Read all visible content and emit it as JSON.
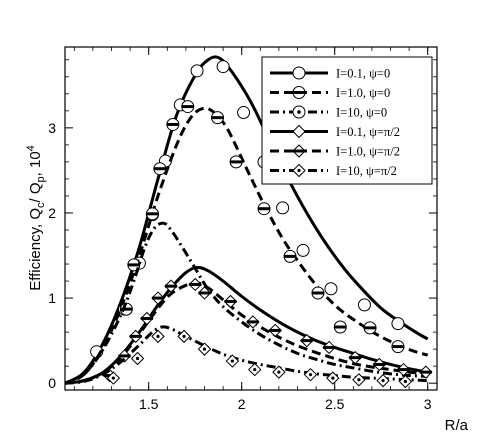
{
  "chart_data": {
    "type": "line",
    "xlabel": "R/a",
    "ylabel_main": "Efficiency,  Q",
    "ylabel_sub1": "c",
    "ylabel_mid": "/ Q",
    "ylabel_sub2": "p",
    "ylabel_tail": ", 10",
    "ylabel_sup": "4",
    "xlim": [
      1.05,
      3.05
    ],
    "ylim": [
      -0.08,
      3.95
    ],
    "xticks": [
      1.5,
      2,
      2.5,
      3
    ],
    "xtick_labels": [
      "1.5",
      "2",
      "2.5",
      "3"
    ],
    "yticks": [
      0,
      1,
      2,
      3
    ],
    "ytick_labels": [
      "0",
      "1",
      "2",
      "3"
    ],
    "legend_position": "top-right",
    "series": [
      {
        "name": "I=0.1,   ψ=0",
        "line": "solid",
        "marker": "circle",
        "curve": [
          [
            1.05,
            0.0
          ],
          [
            1.15,
            0.12
          ],
          [
            1.25,
            0.45
          ],
          [
            1.35,
            0.95
          ],
          [
            1.45,
            1.6
          ],
          [
            1.55,
            2.4
          ],
          [
            1.65,
            3.15
          ],
          [
            1.75,
            3.62
          ],
          [
            1.82,
            3.8
          ],
          [
            1.88,
            3.82
          ],
          [
            1.95,
            3.65
          ],
          [
            2.05,
            3.3
          ],
          [
            2.15,
            2.85
          ],
          [
            2.25,
            2.4
          ],
          [
            2.35,
            2.0
          ],
          [
            2.45,
            1.65
          ],
          [
            2.55,
            1.35
          ],
          [
            2.65,
            1.1
          ],
          [
            2.75,
            0.88
          ],
          [
            2.85,
            0.72
          ],
          [
            2.95,
            0.58
          ],
          [
            3.0,
            0.52
          ]
        ],
        "markers": [
          [
            1.22,
            0.37
          ],
          [
            1.37,
            0.87
          ],
          [
            1.45,
            1.41
          ],
          [
            1.52,
            1.98
          ],
          [
            1.59,
            2.61
          ],
          [
            1.67,
            3.27
          ],
          [
            1.76,
            3.67
          ],
          [
            1.9,
            3.72
          ],
          [
            2.01,
            3.18
          ],
          [
            2.12,
            2.6
          ],
          [
            2.22,
            2.06
          ],
          [
            2.33,
            1.56
          ],
          [
            2.48,
            1.11
          ],
          [
            2.66,
            0.92
          ],
          [
            2.84,
            0.7
          ]
        ]
      },
      {
        "name": "I=1.0,   ψ=0",
        "line": "dashed",
        "marker": "circle-half",
        "curve": [
          [
            1.05,
            0.0
          ],
          [
            1.15,
            0.1
          ],
          [
            1.25,
            0.4
          ],
          [
            1.35,
            0.88
          ],
          [
            1.45,
            1.5
          ],
          [
            1.55,
            2.2
          ],
          [
            1.65,
            2.8
          ],
          [
            1.72,
            3.1
          ],
          [
            1.78,
            3.22
          ],
          [
            1.84,
            3.2
          ],
          [
            1.92,
            3.0
          ],
          [
            2.02,
            2.55
          ],
          [
            2.12,
            2.1
          ],
          [
            2.22,
            1.7
          ],
          [
            2.32,
            1.38
          ],
          [
            2.42,
            1.1
          ],
          [
            2.52,
            0.88
          ],
          [
            2.62,
            0.72
          ],
          [
            2.72,
            0.58
          ],
          [
            2.82,
            0.47
          ],
          [
            2.92,
            0.38
          ],
          [
            3.0,
            0.33
          ]
        ],
        "markers": [
          [
            1.38,
            0.87
          ],
          [
            1.42,
            1.39
          ],
          [
            1.52,
            1.99
          ],
          [
            1.56,
            2.52
          ],
          [
            1.63,
            3.04
          ],
          [
            1.71,
            3.25
          ],
          [
            1.87,
            3.12
          ],
          [
            1.97,
            2.6
          ],
          [
            2.12,
            2.05
          ],
          [
            2.26,
            1.49
          ],
          [
            2.41,
            1.06
          ],
          [
            2.53,
            0.66
          ],
          [
            2.69,
            0.65
          ],
          [
            2.84,
            0.43
          ]
        ]
      },
      {
        "name": "I=10,    ψ=0",
        "line": "dashdot",
        "marker": "circle-dot",
        "curve": [
          [
            1.05,
            0.0
          ],
          [
            1.15,
            0.1
          ],
          [
            1.25,
            0.38
          ],
          [
            1.35,
            0.8
          ],
          [
            1.42,
            1.2
          ],
          [
            1.48,
            1.6
          ],
          [
            1.53,
            1.82
          ],
          [
            1.58,
            1.88
          ],
          [
            1.62,
            1.8
          ],
          [
            1.68,
            1.6
          ],
          [
            1.75,
            1.35
          ],
          [
            1.82,
            1.1
          ],
          [
            1.9,
            0.9
          ],
          [
            2.0,
            0.72
          ],
          [
            2.1,
            0.57
          ],
          [
            2.2,
            0.45
          ],
          [
            2.3,
            0.35
          ],
          [
            2.4,
            0.28
          ],
          [
            2.5,
            0.22
          ],
          [
            2.6,
            0.18
          ],
          [
            2.7,
            0.14
          ],
          [
            2.8,
            0.11
          ],
          [
            2.9,
            0.09
          ],
          [
            3.0,
            0.08
          ]
        ],
        "markers": []
      },
      {
        "name": "I=0.1,   ψ=π/2",
        "line": "solid",
        "marker": "diamond",
        "curve": [
          [
            1.05,
            0.0
          ],
          [
            1.15,
            0.03
          ],
          [
            1.25,
            0.12
          ],
          [
            1.35,
            0.32
          ],
          [
            1.45,
            0.6
          ],
          [
            1.55,
            0.92
          ],
          [
            1.62,
            1.12
          ],
          [
            1.7,
            1.3
          ],
          [
            1.76,
            1.36
          ],
          [
            1.82,
            1.32
          ],
          [
            1.9,
            1.2
          ],
          [
            2.0,
            1.02
          ],
          [
            2.1,
            0.86
          ],
          [
            2.2,
            0.72
          ],
          [
            2.3,
            0.6
          ],
          [
            2.4,
            0.5
          ],
          [
            2.5,
            0.42
          ],
          [
            2.6,
            0.35
          ],
          [
            2.7,
            0.28
          ],
          [
            2.8,
            0.22
          ],
          [
            2.9,
            0.17
          ],
          [
            3.0,
            0.13
          ]
        ],
        "markers": []
      },
      {
        "name": "I=1.0,   ψ=π/2",
        "line": "dashed",
        "marker": "diamond-half",
        "curve": [
          [
            1.05,
            0.0
          ],
          [
            1.15,
            0.03
          ],
          [
            1.25,
            0.12
          ],
          [
            1.35,
            0.3
          ],
          [
            1.45,
            0.58
          ],
          [
            1.55,
            0.88
          ],
          [
            1.62,
            1.05
          ],
          [
            1.7,
            1.15
          ],
          [
            1.76,
            1.18
          ],
          [
            1.82,
            1.12
          ],
          [
            1.9,
            0.98
          ],
          [
            2.0,
            0.8
          ],
          [
            2.1,
            0.66
          ],
          [
            2.2,
            0.54
          ],
          [
            2.3,
            0.44
          ],
          [
            2.4,
            0.36
          ],
          [
            2.5,
            0.29
          ],
          [
            2.6,
            0.23
          ],
          [
            2.7,
            0.19
          ],
          [
            2.8,
            0.16
          ],
          [
            2.9,
            0.13
          ],
          [
            3.0,
            0.11
          ]
        ],
        "markers": [
          [
            1.29,
            0.09
          ],
          [
            1.37,
            0.32
          ],
          [
            1.43,
            0.55
          ],
          [
            1.49,
            0.76
          ],
          [
            1.55,
            1.0
          ],
          [
            1.62,
            1.14
          ],
          [
            1.75,
            1.16
          ],
          [
            1.8,
            1.06
          ],
          [
            1.94,
            0.96
          ],
          [
            2.06,
            0.72
          ],
          [
            2.18,
            0.62
          ],
          [
            2.35,
            0.5
          ],
          [
            2.47,
            0.42
          ],
          [
            2.61,
            0.3
          ],
          [
            2.74,
            0.22
          ],
          [
            2.87,
            0.16
          ],
          [
            2.99,
            0.13
          ]
        ]
      },
      {
        "name": "I=10,    ψ=π/2",
        "line": "dashdot",
        "marker": "diamond-dot",
        "curve": [
          [
            1.05,
            0.0
          ],
          [
            1.15,
            0.02
          ],
          [
            1.25,
            0.1
          ],
          [
            1.35,
            0.25
          ],
          [
            1.45,
            0.45
          ],
          [
            1.52,
            0.6
          ],
          [
            1.57,
            0.66
          ],
          [
            1.62,
            0.64
          ],
          [
            1.7,
            0.55
          ],
          [
            1.8,
            0.44
          ],
          [
            1.9,
            0.34
          ],
          [
            2.0,
            0.27
          ],
          [
            2.1,
            0.22
          ],
          [
            2.2,
            0.18
          ],
          [
            2.3,
            0.14
          ],
          [
            2.4,
            0.11
          ],
          [
            2.5,
            0.09
          ],
          [
            2.6,
            0.07
          ],
          [
            2.7,
            0.06
          ],
          [
            2.8,
            0.05
          ],
          [
            2.9,
            0.04
          ],
          [
            3.0,
            0.03
          ]
        ],
        "markers": [
          [
            1.31,
            0.06
          ],
          [
            1.44,
            0.29
          ],
          [
            1.55,
            0.55
          ],
          [
            1.69,
            0.55
          ],
          [
            1.8,
            0.4
          ],
          [
            1.95,
            0.26
          ],
          [
            2.07,
            0.16
          ],
          [
            2.2,
            0.13
          ],
          [
            2.37,
            0.1
          ],
          [
            2.49,
            0.06
          ],
          [
            2.63,
            0.04
          ],
          [
            2.76,
            0.03
          ],
          [
            2.88,
            0.02
          ]
        ]
      }
    ]
  }
}
